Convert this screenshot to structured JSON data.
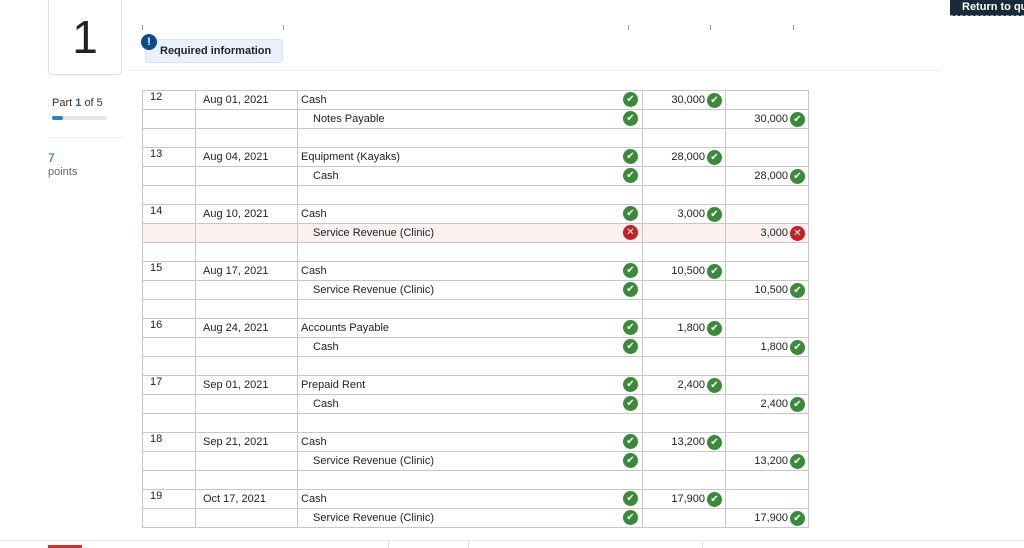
{
  "question_number": "1",
  "part": {
    "prefix": "Part",
    "current": "1",
    "of_text": "of 5",
    "progress": 0.2
  },
  "points": {
    "value": "7",
    "label": "points"
  },
  "return_button": "Return to qu",
  "required_info": {
    "icon": "!",
    "label": "Required information"
  },
  "entries": [
    {
      "no": "12",
      "date": "Aug 01, 2021",
      "lines": [
        {
          "account": "Cash",
          "indent": false,
          "debit": "30,000",
          "credit": "",
          "account_ok": true,
          "amount_ok": true
        },
        {
          "account": "Notes Payable",
          "indent": true,
          "debit": "",
          "credit": "30,000",
          "account_ok": true,
          "amount_ok": true
        }
      ]
    },
    {
      "no": "13",
      "date": "Aug 04, 2021",
      "lines": [
        {
          "account": "Equipment (Kayaks)",
          "indent": false,
          "debit": "28,000",
          "credit": "",
          "account_ok": true,
          "amount_ok": true
        },
        {
          "account": "Cash",
          "indent": true,
          "debit": "",
          "credit": "28,000",
          "account_ok": true,
          "amount_ok": true
        }
      ]
    },
    {
      "no": "14",
      "date": "Aug 10, 2021",
      "lines": [
        {
          "account": "Cash",
          "indent": false,
          "debit": "3,000",
          "credit": "",
          "account_ok": true,
          "amount_ok": true
        },
        {
          "account": "Service Revenue (Clinic)",
          "indent": true,
          "debit": "",
          "credit": "3,000",
          "account_ok": false,
          "amount_ok": false
        }
      ]
    },
    {
      "no": "15",
      "date": "Aug 17, 2021",
      "lines": [
        {
          "account": "Cash",
          "indent": false,
          "debit": "10,500",
          "credit": "",
          "account_ok": true,
          "amount_ok": true
        },
        {
          "account": "Service Revenue (Clinic)",
          "indent": true,
          "debit": "",
          "credit": "10,500",
          "account_ok": true,
          "amount_ok": true
        }
      ]
    },
    {
      "no": "16",
      "date": "Aug 24, 2021",
      "lines": [
        {
          "account": "Accounts Payable",
          "indent": false,
          "debit": "1,800",
          "credit": "",
          "account_ok": true,
          "amount_ok": true
        },
        {
          "account": "Cash",
          "indent": true,
          "debit": "",
          "credit": "1,800",
          "account_ok": true,
          "amount_ok": true
        }
      ]
    },
    {
      "no": "17",
      "date": "Sep 01, 2021",
      "lines": [
        {
          "account": "Prepaid Rent",
          "indent": false,
          "debit": "2,400",
          "credit": "",
          "account_ok": true,
          "amount_ok": true
        },
        {
          "account": "Cash",
          "indent": true,
          "debit": "",
          "credit": "2,400",
          "account_ok": true,
          "amount_ok": true
        }
      ]
    },
    {
      "no": "18",
      "date": "Sep 21, 2021",
      "lines": [
        {
          "account": "Cash",
          "indent": false,
          "debit": "13,200",
          "credit": "",
          "account_ok": true,
          "amount_ok": true
        },
        {
          "account": "Service Revenue (Clinic)",
          "indent": true,
          "debit": "",
          "credit": "13,200",
          "account_ok": true,
          "amount_ok": true
        }
      ]
    },
    {
      "no": "19",
      "date": "Oct 17, 2021",
      "lines": [
        {
          "account": "Cash",
          "indent": false,
          "debit": "17,900",
          "credit": "",
          "account_ok": true,
          "amount_ok": true
        },
        {
          "account": "Service Revenue (Clinic)",
          "indent": true,
          "debit": "",
          "credit": "17,900",
          "account_ok": true,
          "amount_ok": true
        }
      ]
    }
  ],
  "icons": {
    "correct": "check-circle-icon",
    "incorrect": "x-circle-icon"
  },
  "colors": {
    "correct": "#3a8a3a",
    "incorrect": "#c42127",
    "accent": "#1a5fa8"
  }
}
